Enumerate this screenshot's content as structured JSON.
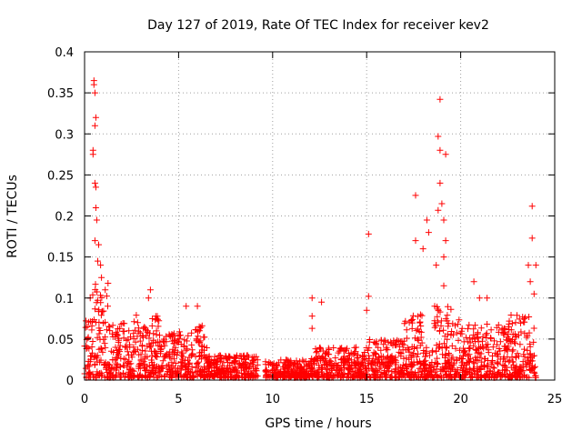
{
  "chart_data": {
    "type": "scatter",
    "title": "Day 127 of 2019, Rate Of TEC Index for receiver kev2",
    "xlabel": "GPS time / hours",
    "ylabel": "ROTI / TECUs",
    "xlim": [
      0,
      25
    ],
    "ylim": [
      0,
      0.4
    ],
    "grid": true,
    "marker": "+",
    "color": "#ff0000",
    "x_ticks": [
      0,
      5,
      10,
      15,
      20,
      25
    ],
    "x_tick_labels": [
      "0",
      "5",
      "10",
      "15",
      "20",
      "25"
    ],
    "y_ticks": [
      0,
      0.05,
      0.1,
      0.15,
      0.2,
      0.25,
      0.3,
      0.35,
      0.4
    ],
    "y_tick_labels": [
      "0",
      "0.05",
      "0.1",
      "0.15",
      "0.2",
      "0.25",
      "0.3",
      "0.35",
      "0.4"
    ],
    "series": [
      {
        "name": "ROTI",
        "notable_points": [
          {
            "x": 0.5,
            "y": 0.365
          },
          {
            "x": 0.5,
            "y": 0.36
          },
          {
            "x": 0.55,
            "y": 0.35
          },
          {
            "x": 0.6,
            "y": 0.32
          },
          {
            "x": 0.55,
            "y": 0.31
          },
          {
            "x": 0.45,
            "y": 0.28
          },
          {
            "x": 0.45,
            "y": 0.275
          },
          {
            "x": 0.55,
            "y": 0.24
          },
          {
            "x": 0.6,
            "y": 0.235
          },
          {
            "x": 0.6,
            "y": 0.21
          },
          {
            "x": 0.65,
            "y": 0.195
          },
          {
            "x": 0.55,
            "y": 0.17
          },
          {
            "x": 0.75,
            "y": 0.165
          },
          {
            "x": 0.7,
            "y": 0.145
          },
          {
            "x": 0.85,
            "y": 0.14
          },
          {
            "x": 0.9,
            "y": 0.125
          },
          {
            "x": 1.1,
            "y": 0.11
          },
          {
            "x": 0.3,
            "y": 0.1
          },
          {
            "x": 3.5,
            "y": 0.11
          },
          {
            "x": 3.4,
            "y": 0.1
          },
          {
            "x": 5.4,
            "y": 0.09
          },
          {
            "x": 6.0,
            "y": 0.09
          },
          {
            "x": 12.1,
            "y": 0.1
          },
          {
            "x": 12.6,
            "y": 0.095
          },
          {
            "x": 12.1,
            "y": 0.078
          },
          {
            "x": 12.1,
            "y": 0.063
          },
          {
            "x": 15.1,
            "y": 0.178
          },
          {
            "x": 15.1,
            "y": 0.102
          },
          {
            "x": 15.0,
            "y": 0.085
          },
          {
            "x": 17.6,
            "y": 0.225
          },
          {
            "x": 17.6,
            "y": 0.17
          },
          {
            "x": 18.0,
            "y": 0.16
          },
          {
            "x": 18.2,
            "y": 0.195
          },
          {
            "x": 18.3,
            "y": 0.18
          },
          {
            "x": 18.9,
            "y": 0.342
          },
          {
            "x": 18.8,
            "y": 0.297
          },
          {
            "x": 18.9,
            "y": 0.28
          },
          {
            "x": 19.2,
            "y": 0.275
          },
          {
            "x": 18.9,
            "y": 0.24
          },
          {
            "x": 19.0,
            "y": 0.215
          },
          {
            "x": 18.8,
            "y": 0.207
          },
          {
            "x": 19.1,
            "y": 0.195
          },
          {
            "x": 19.2,
            "y": 0.17
          },
          {
            "x": 19.1,
            "y": 0.15
          },
          {
            "x": 18.7,
            "y": 0.14
          },
          {
            "x": 19.1,
            "y": 0.115
          },
          {
            "x": 20.7,
            "y": 0.12
          },
          {
            "x": 21.0,
            "y": 0.1
          },
          {
            "x": 21.4,
            "y": 0.1
          },
          {
            "x": 23.8,
            "y": 0.212
          },
          {
            "x": 23.8,
            "y": 0.173
          },
          {
            "x": 23.6,
            "y": 0.14
          },
          {
            "x": 24.0,
            "y": 0.14
          },
          {
            "x": 23.7,
            "y": 0.12
          },
          {
            "x": 23.9,
            "y": 0.105
          }
        ],
        "baseline_envelope": [
          {
            "x_start": 0.0,
            "x_end": 0.3,
            "y_low": 0.003,
            "y_high": 0.075
          },
          {
            "x_start": 0.3,
            "x_end": 1.3,
            "y_low": 0.003,
            "y_high": 0.12
          },
          {
            "x_start": 1.3,
            "x_end": 2.5,
            "y_low": 0.003,
            "y_high": 0.07
          },
          {
            "x_start": 2.5,
            "x_end": 4.0,
            "y_low": 0.003,
            "y_high": 0.08
          },
          {
            "x_start": 4.0,
            "x_end": 5.5,
            "y_low": 0.003,
            "y_high": 0.06
          },
          {
            "x_start": 5.5,
            "x_end": 6.5,
            "y_low": 0.003,
            "y_high": 0.07
          },
          {
            "x_start": 6.5,
            "x_end": 9.2,
            "y_low": 0.003,
            "y_high": 0.03
          },
          {
            "x_start": 9.6,
            "x_end": 12.0,
            "y_low": 0.003,
            "y_high": 0.025
          },
          {
            "x_start": 12.0,
            "x_end": 15.0,
            "y_low": 0.003,
            "y_high": 0.04
          },
          {
            "x_start": 15.0,
            "x_end": 17.0,
            "y_low": 0.003,
            "y_high": 0.05
          },
          {
            "x_start": 17.0,
            "x_end": 18.0,
            "y_low": 0.003,
            "y_high": 0.08
          },
          {
            "x_start": 18.0,
            "x_end": 18.6,
            "y_low": 0.003,
            "y_high": 0.04
          },
          {
            "x_start": 18.6,
            "x_end": 20.0,
            "y_low": 0.003,
            "y_high": 0.09
          },
          {
            "x_start": 20.0,
            "x_end": 22.5,
            "y_low": 0.003,
            "y_high": 0.07
          },
          {
            "x_start": 22.5,
            "x_end": 24.0,
            "y_low": 0.003,
            "y_high": 0.08
          }
        ]
      }
    ]
  }
}
